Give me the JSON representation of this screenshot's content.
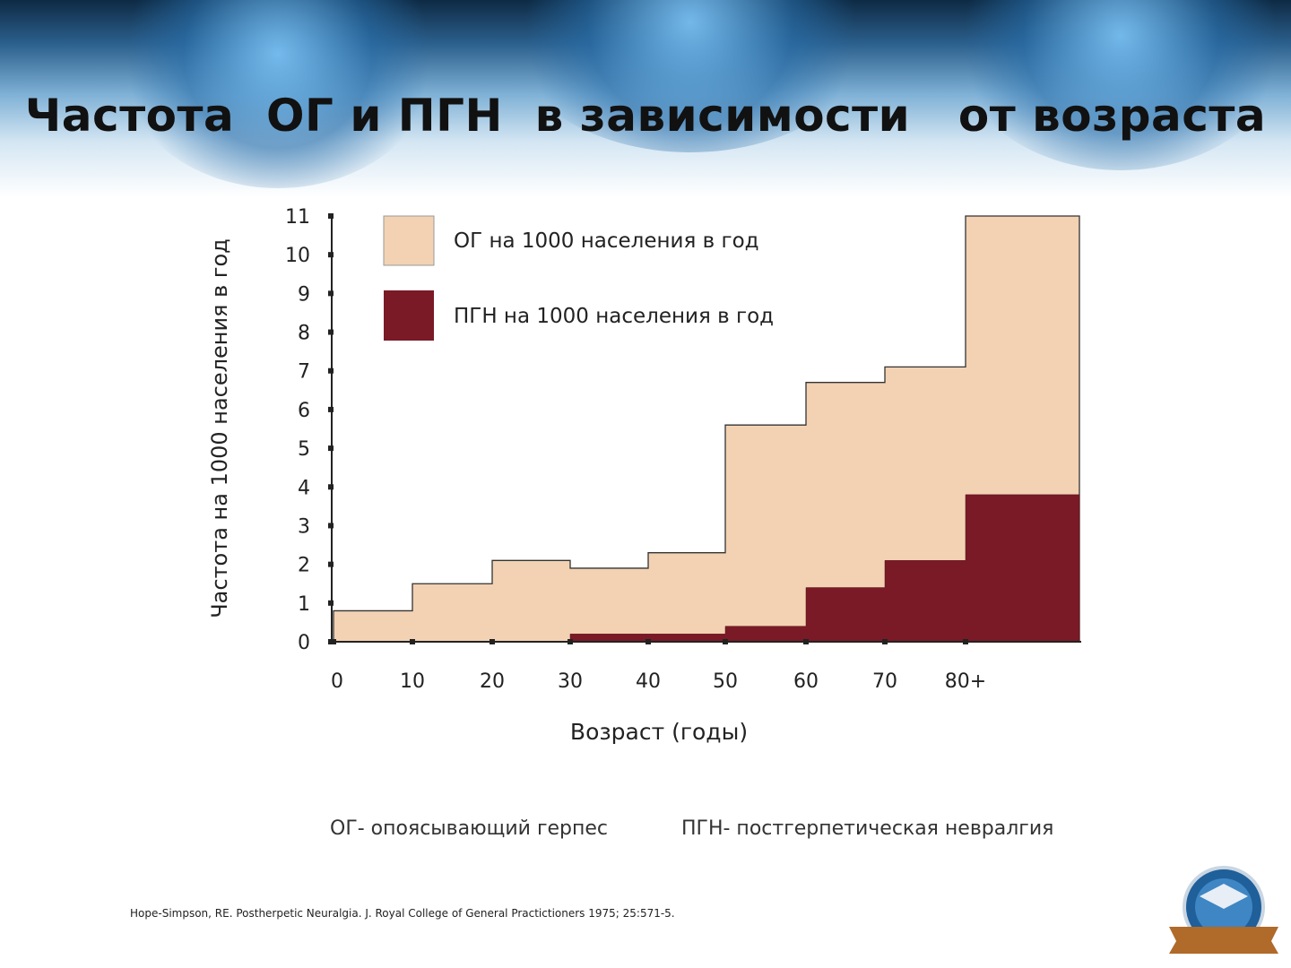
{
  "slide": {
    "title": "Частота  ОГ и ПГН  в зависимости   от возраста",
    "footnote_og": "ОГ- опоясывающий герпес",
    "footnote_pgn": "ПГН- постгерпетическая невралгия",
    "reference": "Hope-Simpson, RE. Postherpetic Neuralgia. J. Royal College of General Practictioners 1975; 25:571-5."
  },
  "chart_data": {
    "type": "area",
    "step": true,
    "title": "",
    "xlabel": "Возраст (годы)",
    "ylabel": "Частота на 1000 населения в год",
    "ylim": [
      0,
      11
    ],
    "yticks": [
      "0",
      "1",
      "2",
      "3",
      "4",
      "5",
      "6",
      "7",
      "8",
      "9",
      "10",
      "11"
    ],
    "xticks": [
      "0",
      "10",
      "20",
      "30",
      "40",
      "50",
      "60",
      "70",
      "80+"
    ],
    "bins": [
      "0-10",
      "10-20",
      "20-30",
      "30-40",
      "40-50",
      "50-60",
      "60-70",
      "70-80",
      "80+"
    ],
    "series": [
      {
        "name": "ОГ на 1000 населения в год",
        "color": "#f2d2b3",
        "values": [
          0.8,
          1.5,
          2.1,
          1.9,
          2.3,
          5.6,
          6.7,
          7.1,
          11.0
        ]
      },
      {
        "name": "ПГН на 1000 населения в год",
        "color": "#7a1a26",
        "values": [
          0,
          0,
          0,
          0.2,
          0.2,
          0.4,
          1.4,
          2.1,
          3.8
        ]
      }
    ],
    "legend_position": "top-left",
    "grid": false
  }
}
